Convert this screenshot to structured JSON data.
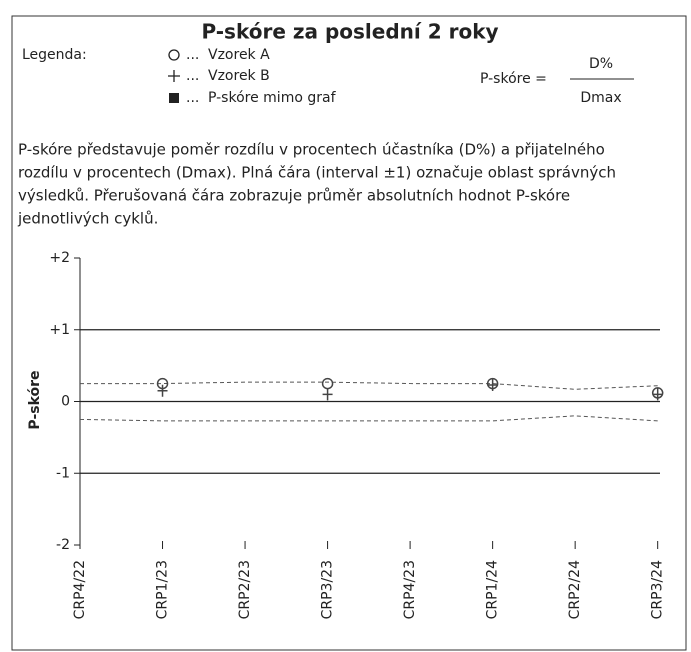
{
  "chart_data": {
    "type": "scatter",
    "title": "P-skóre za poslední 2 roky",
    "legend_title": "Legenda:",
    "legend_separator": "...",
    "legend_extra": "P-skóre mimo graf",
    "formula_left": "P-skóre =",
    "formula_numerator": "D%",
    "formula_denominator": "Dmax",
    "description": [
      "P-skóre představuje poměr rozdílu v procentech účastníka (D%) a přijatelného",
      "rozdílu v procentech (Dmax). Plná čára (interval ±1) označuje oblast správných",
      "výsledků. Přerušovaná čára zobrazuje průměr absolutních hodnot P-skóre",
      "jednotlivých cyklů."
    ],
    "y_label": "P-skóre",
    "categories": [
      "CRP4/22",
      "CRP1/23",
      "CRP2/23",
      "CRP3/23",
      "CRP4/23",
      "CRP1/24",
      "CRP2/24",
      "CRP3/24"
    ],
    "series": [
      {
        "name": "Vzorek A",
        "marker": "circle",
        "color": "#444",
        "values": [
          null,
          0.25,
          null,
          0.25,
          null,
          0.25,
          null,
          0.12
        ]
      },
      {
        "name": "Vzorek B",
        "marker": "plus",
        "color": "#444",
        "values": [
          null,
          0.15,
          null,
          0.1,
          null,
          0.23,
          null,
          0.1
        ]
      }
    ],
    "mean_upper": [
      0.25,
      0.25,
      0.27,
      0.27,
      0.25,
      0.25,
      0.17,
      0.22
    ],
    "mean_lower": [
      -0.25,
      -0.27,
      -0.27,
      -0.27,
      -0.27,
      -0.27,
      -0.2,
      -0.27
    ],
    "hlines": [
      1,
      0,
      -1
    ],
    "ylim": [
      -2,
      2
    ],
    "yticks": [
      {
        "value": 2,
        "label": "+2"
      },
      {
        "value": 1,
        "label": "+1"
      },
      0,
      -1,
      -2
    ]
  }
}
